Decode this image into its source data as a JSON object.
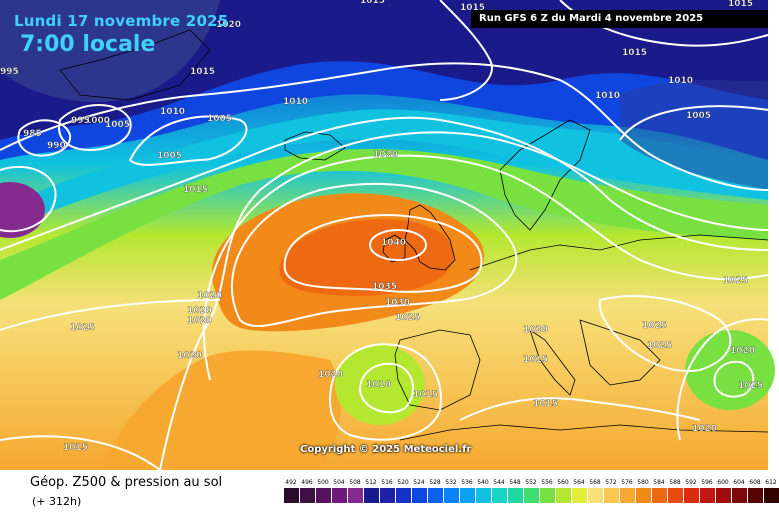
{
  "header": {
    "date": "Lundi 17 novembre 2025",
    "time": "7:00 locale",
    "run": "Run GFS 6 Z du Mardi 4 novembre 2025"
  },
  "copyright": "Copyright © 2025 Meteociel.fr",
  "footer": {
    "title": "Géop. Z500 & pression au sol",
    "subtitle": "(+ 312h)"
  },
  "legend": [
    {
      "label": "492",
      "color": "#2b0a2e"
    },
    {
      "label": "496",
      "color": "#3d0f45"
    },
    {
      "label": "500",
      "color": "#55135e"
    },
    {
      "label": "504",
      "color": "#6d1a78"
    },
    {
      "label": "508",
      "color": "#852a8f"
    },
    {
      "label": "512",
      "color": "#1a1a8a"
    },
    {
      "label": "516",
      "color": "#1f22a8"
    },
    {
      "label": "520",
      "color": "#1630c8"
    },
    {
      "label": "524",
      "color": "#1046e0"
    },
    {
      "label": "528",
      "color": "#0c62ee"
    },
    {
      "label": "532",
      "color": "#0a82f5"
    },
    {
      "label": "536",
      "color": "#0aa2f0"
    },
    {
      "label": "540",
      "color": "#10c2e0"
    },
    {
      "label": "544",
      "color": "#18d4c4"
    },
    {
      "label": "548",
      "color": "#20d8a0"
    },
    {
      "label": "552",
      "color": "#40dc70"
    },
    {
      "label": "556",
      "color": "#78e040"
    },
    {
      "label": "560",
      "color": "#b4e830"
    },
    {
      "label": "564",
      "color": "#e6ec3a"
    },
    {
      "label": "568",
      "color": "#f6e07a"
    },
    {
      "label": "572",
      "color": "#f8c850"
    },
    {
      "label": "576",
      "color": "#f6a830"
    },
    {
      "label": "580",
      "color": "#f28a1a"
    },
    {
      "label": "584",
      "color": "#ee6a12"
    },
    {
      "label": "588",
      "color": "#e84a10"
    },
    {
      "label": "592",
      "color": "#dc2c10"
    },
    {
      "label": "596",
      "color": "#c01810"
    },
    {
      "label": "600",
      "color": "#a00c0c"
    },
    {
      "label": "604",
      "color": "#7c0808"
    },
    {
      "label": "608",
      "color": "#580404"
    },
    {
      "label": "612",
      "color": "#300202"
    }
  ],
  "isobars": [
    "1040",
    "1035",
    "1030",
    "1025",
    "1025",
    "1020",
    "1020",
    "1020",
    "1020",
    "1020",
    "1020",
    "1020",
    "1020",
    "1020",
    "1015",
    "1015",
    "1015",
    "1015",
    "1015",
    "1015",
    "1015",
    "1015",
    "1015",
    "1010",
    "1010",
    "1010",
    "1010",
    "1010",
    "1005",
    "1005",
    "1005",
    "1005",
    "1000",
    "995",
    "995",
    "990",
    "985",
    "1025",
    "1025",
    "1025",
    "1020",
    "1025",
    "1015"
  ],
  "colors": {
    "header_text": "#3fd0ff",
    "run_box": "#000000",
    "isobar": "#ffffff",
    "coast": "#000000"
  }
}
